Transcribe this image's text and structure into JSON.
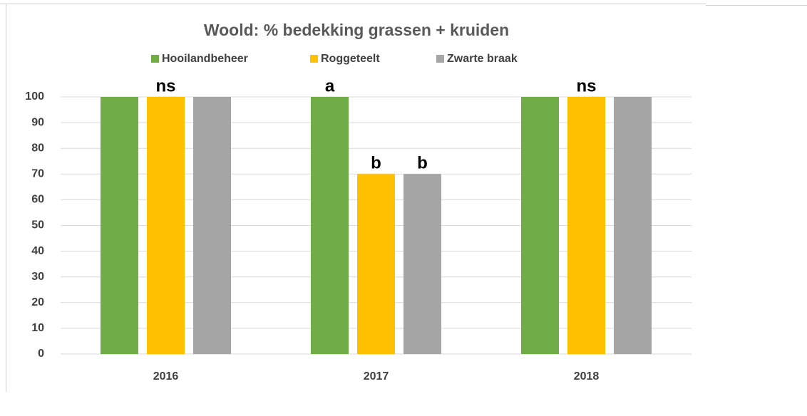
{
  "chart_data": {
    "type": "bar",
    "title": "Woold: % bedekking grassen + kruiden",
    "categories": [
      "2016",
      "2017",
      "2018"
    ],
    "series": [
      {
        "name": "Hooilandbeheer",
        "color": "#70ad47",
        "values": [
          100,
          100,
          100
        ],
        "value_labels": [
          null,
          "a",
          null
        ]
      },
      {
        "name": "Roggeteelt",
        "color": "#ffc000",
        "values": [
          100,
          70,
          100
        ],
        "value_labels": [
          "ns",
          "b",
          "ns"
        ]
      },
      {
        "name": "Zwarte braak",
        "color": "#a5a5a5",
        "values": [
          100,
          70,
          100
        ],
        "value_labels": [
          null,
          "b",
          null
        ]
      }
    ],
    "ylim": [
      0,
      100
    ],
    "yticks": [
      0,
      10,
      20,
      30,
      40,
      50,
      60,
      70,
      80,
      90,
      100
    ],
    "grid": true,
    "legend": "top"
  }
}
